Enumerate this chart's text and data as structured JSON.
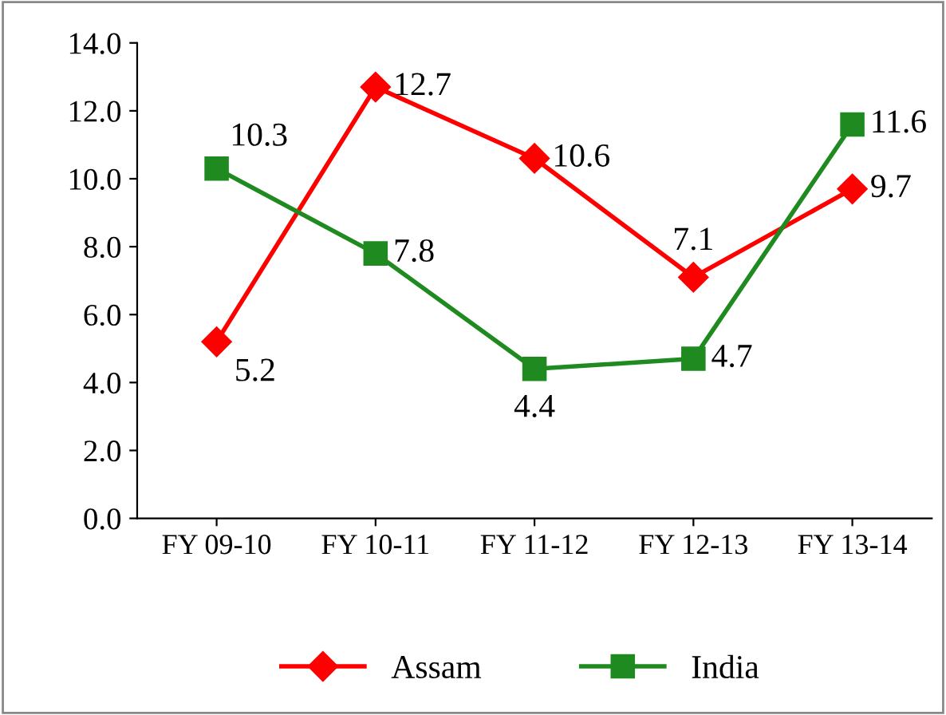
{
  "chart_data": {
    "type": "line",
    "categories": [
      "FY 09-10",
      "FY 10-11",
      "FY 11-12",
      "FY 12-13",
      "FY 13-14"
    ],
    "series": [
      {
        "name": "Assam",
        "color": "#ff0000",
        "marker": "diamond",
        "values": [
          5.2,
          12.7,
          10.6,
          7.1,
          9.7
        ]
      },
      {
        "name": "India",
        "color": "#1f8a1f",
        "marker": "square",
        "values": [
          10.3,
          7.8,
          4.4,
          4.7,
          11.6
        ]
      }
    ],
    "ylim": [
      0,
      14
    ],
    "yticks": [
      {
        "value": 0,
        "label": "0.0"
      },
      {
        "value": 2,
        "label": "2.0"
      },
      {
        "value": 4,
        "label": "4.0"
      },
      {
        "value": 6,
        "label": "6.0"
      },
      {
        "value": 8,
        "label": "8.0"
      },
      {
        "value": 10,
        "label": "10.0"
      },
      {
        "value": 12,
        "label": "12.0"
      },
      {
        "value": 14,
        "label": "14.0"
      }
    ],
    "data_labels": true,
    "grid": false,
    "legend": "bottom",
    "line_style": "solid"
  }
}
